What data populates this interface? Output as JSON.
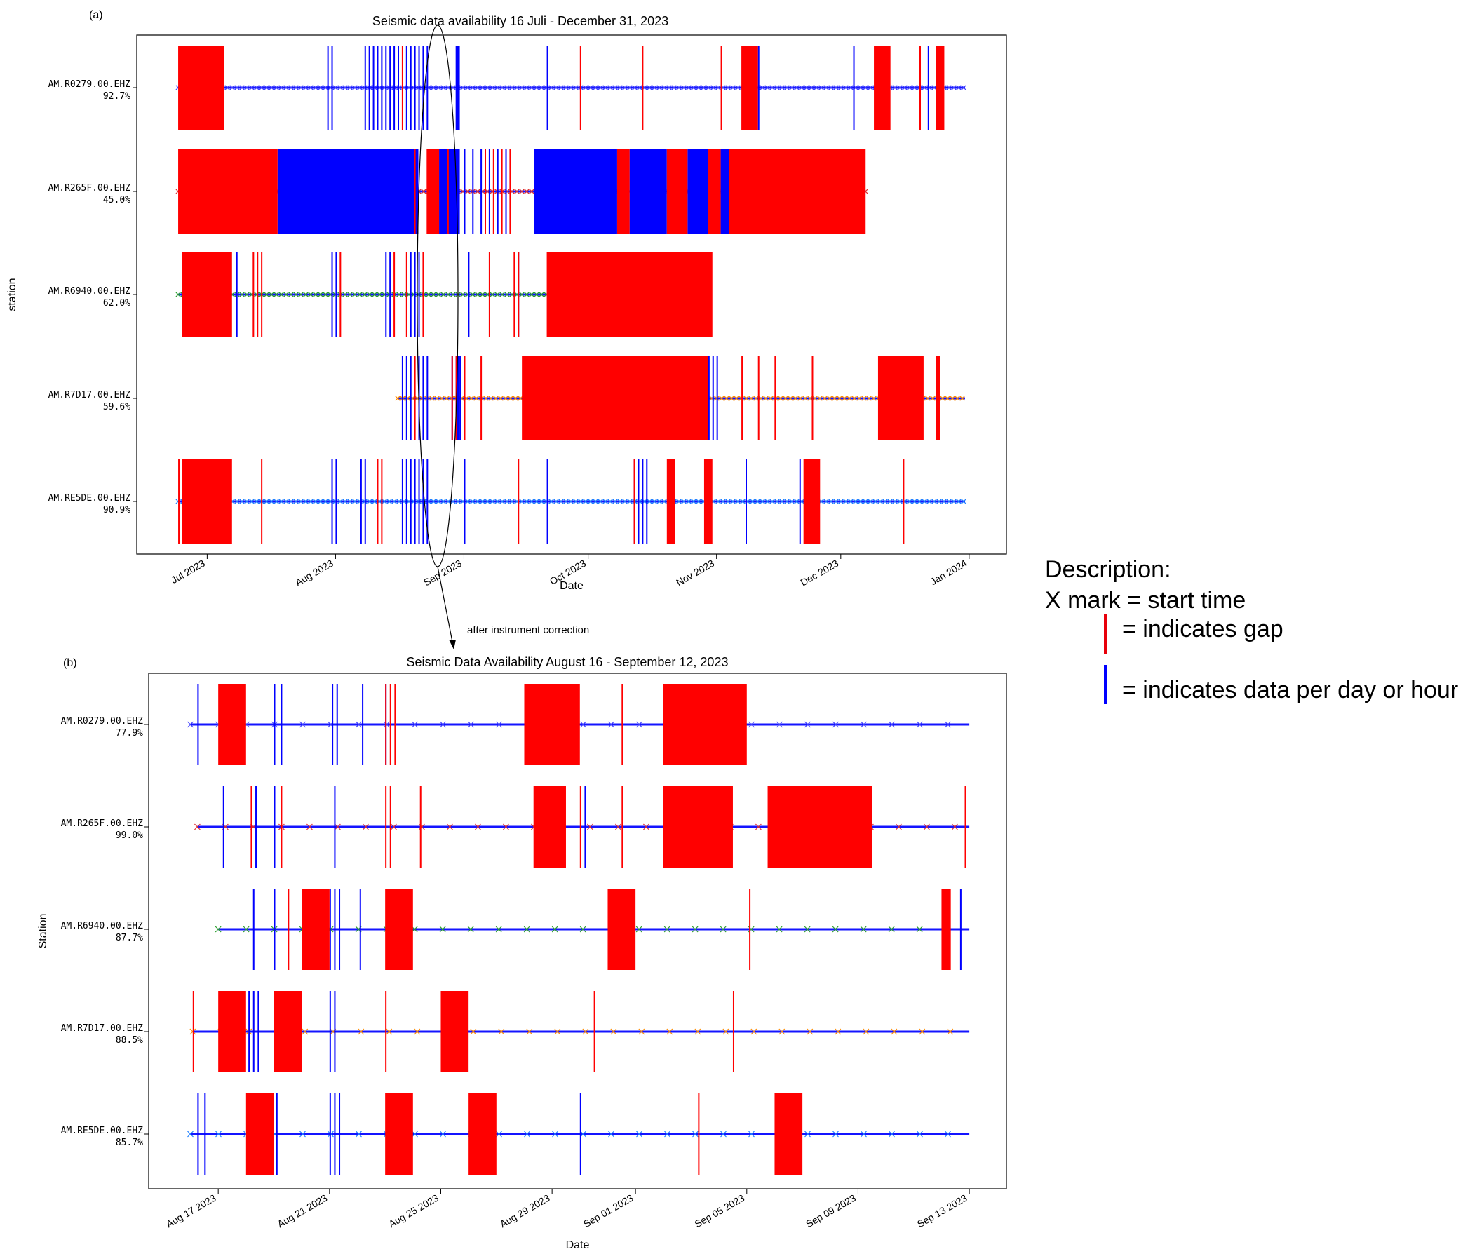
{
  "legend": {
    "title": "Description:",
    "x_mark": "X mark = start time",
    "gap": "= indicates gap",
    "data": "= indicates data per day or hour",
    "gap_color": "#ff0000",
    "data_color": "#0000ff"
  },
  "annotation": {
    "note": "after instrument correction"
  },
  "chart_data": [
    {
      "panel_label": "(a)",
      "type": "timeline",
      "title": "Seismic data availability 16 Juli - December  31, 2023",
      "xlabel": "Date",
      "ylabel": "station",
      "xlim": [
        "2023-06-14",
        "2024-01-10"
      ],
      "xticks": [
        {
          "date": "2023-07-01",
          "label": "Jul 2023"
        },
        {
          "date": "2023-08-01",
          "label": "Aug 2023"
        },
        {
          "date": "2023-09-01",
          "label": "Sep 2023"
        },
        {
          "date": "2023-10-01",
          "label": "Oct 2023"
        },
        {
          "date": "2023-11-01",
          "label": "Nov 2023"
        },
        {
          "date": "2023-12-01",
          "label": "Dec 2023"
        },
        {
          "date": "2024-01-01",
          "label": "Jan 2024"
        }
      ],
      "series": [
        {
          "station": "AM.R0279.00.EHZ",
          "pct": "92.7%",
          "marker_color": "#4040ff",
          "data_start": "2023-06-24",
          "data_end": "2023-12-31",
          "gaps": [
            [
              "2023-06-24",
              "2023-06-25"
            ],
            [
              "2023-06-25",
              "2023-07-04"
            ],
            [
              "2023-07-04",
              "2023-07-05"
            ],
            [
              "2023-11-07",
              "2023-11-11"
            ],
            [
              "2023-12-09",
              "2023-12-13"
            ],
            [
              "2023-12-24",
              "2023-12-26"
            ]
          ],
          "gap_lines": [
            "2023-06-26",
            "2023-08-17",
            "2023-09-29",
            "2023-10-14",
            "2023-11-02",
            "2023-11-08",
            "2023-11-10",
            "2023-12-20"
          ],
          "data_blocks": [
            [
              "2023-08-30",
              "2023-08-31"
            ]
          ],
          "data_lines": [
            "2023-07-30",
            "2023-07-31",
            "2023-08-08",
            "2023-08-09",
            "2023-08-10",
            "2023-08-11",
            "2023-08-12",
            "2023-08-13",
            "2023-08-14",
            "2023-08-15",
            "2023-08-16",
            "2023-08-18",
            "2023-08-19",
            "2023-08-20",
            "2023-08-21",
            "2023-08-22",
            "2023-08-23",
            "2023-09-21",
            "2023-11-11",
            "2023-12-04",
            "2023-12-22"
          ]
        },
        {
          "station": "AM.R265F.00.EHZ",
          "pct": "45.0%",
          "marker_color": "#e03030",
          "data_start": "2023-06-24",
          "data_end": "2023-12-07",
          "gaps": [
            [
              "2023-06-24",
              "2023-07-18"
            ],
            [
              "2023-08-23",
              "2023-08-26"
            ],
            [
              "2023-10-08",
              "2023-10-11"
            ],
            [
              "2023-10-20",
              "2023-10-25"
            ],
            [
              "2023-10-30",
              "2023-11-02"
            ],
            [
              "2023-11-04",
              "2023-12-07"
            ]
          ],
          "gap_lines": [
            "2023-07-06",
            "2023-08-20",
            "2023-08-28",
            "2023-09-06",
            "2023-09-08",
            "2023-09-10",
            "2023-09-12"
          ],
          "data_blocks": [
            [
              "2023-07-18",
              "2023-08-21"
            ],
            [
              "2023-08-26",
              "2023-08-31"
            ],
            [
              "2023-09-18",
              "2023-10-08"
            ],
            [
              "2023-10-11",
              "2023-10-20"
            ],
            [
              "2023-10-25",
              "2023-10-30"
            ],
            [
              "2023-11-02",
              "2023-11-04"
            ]
          ],
          "data_lines": [
            "2023-08-28",
            "2023-08-29",
            "2023-09-01",
            "2023-09-03",
            "2023-09-05",
            "2023-09-07",
            "2023-09-09",
            "2023-09-11"
          ]
        },
        {
          "station": "AM.R6940.00.EHZ",
          "pct": "62.0%",
          "marker_color": "#2ca02c",
          "data_start": "2023-06-24",
          "data_end": "2023-09-21",
          "gaps": [
            [
              "2023-06-25",
              "2023-07-07"
            ],
            [
              "2023-09-21",
              "2023-10-31"
            ]
          ],
          "gap_lines": [
            "2023-07-12",
            "2023-07-13",
            "2023-07-14",
            "2023-08-02",
            "2023-08-15",
            "2023-08-18",
            "2023-08-22",
            "2023-09-07",
            "2023-09-13",
            "2023-09-14"
          ],
          "data_blocks": [],
          "data_lines": [
            "2023-06-25",
            "2023-07-08",
            "2023-07-31",
            "2023-08-01",
            "2023-08-13",
            "2023-08-14",
            "2023-08-19",
            "2023-08-20",
            "2023-08-21",
            "2023-09-02",
            "2023-09-14"
          ]
        },
        {
          "station": "AM.R7D17.00.EHZ",
          "pct": "59.6%",
          "marker_color": "#ff8c00",
          "data_start": "2023-08-16",
          "data_end": "2023-12-31",
          "gaps": [
            [
              "2023-09-15",
              "2023-10-30"
            ],
            [
              "2023-12-10",
              "2023-12-21"
            ],
            [
              "2023-12-24",
              "2023-12-25"
            ]
          ],
          "gap_lines": [
            "2023-08-20",
            "2023-08-29",
            "2023-08-30",
            "2023-09-01",
            "2023-09-05",
            "2023-11-07",
            "2023-11-11",
            "2023-11-15",
            "2023-11-24"
          ],
          "data_blocks": [
            [
              "2023-08-30",
              "2023-08-31"
            ]
          ],
          "data_lines": [
            "2023-08-17",
            "2023-08-18",
            "2023-08-19",
            "2023-08-21",
            "2023-08-22",
            "2023-08-23",
            "2023-08-29",
            "2023-08-31",
            "2023-10-30",
            "2023-10-31",
            "2023-11-01"
          ]
        },
        {
          "station": "AM.RE5DE.00.EHZ",
          "pct": "90.9%",
          "marker_color": "#2080ff",
          "data_start": "2023-06-24",
          "data_end": "2023-12-31",
          "gaps": [
            [
              "2023-06-25",
              "2023-07-07"
            ],
            [
              "2023-10-20",
              "2023-10-22"
            ],
            [
              "2023-10-29",
              "2023-10-31"
            ],
            [
              "2023-11-22",
              "2023-11-26"
            ]
          ],
          "gap_lines": [
            "2023-06-24",
            "2023-07-14",
            "2023-08-11",
            "2023-08-12",
            "2023-09-14",
            "2023-10-12",
            "2023-12-16"
          ],
          "data_blocks": [],
          "data_lines": [
            "2023-07-31",
            "2023-08-01",
            "2023-08-07",
            "2023-08-08",
            "2023-08-17",
            "2023-08-18",
            "2023-08-19",
            "2023-08-20",
            "2023-08-21",
            "2023-08-22",
            "2023-08-23",
            "2023-09-01",
            "2023-09-21",
            "2023-10-12",
            "2023-10-13",
            "2023-10-14",
            "2023-10-15",
            "2023-11-08",
            "2023-11-21"
          ]
        }
      ]
    },
    {
      "panel_label": "(b)",
      "type": "timeline",
      "title": "Seismic Data Availability August 16 - September 12, 2023",
      "xlabel": "Date",
      "ylabel": "Station",
      "xlim": [
        "2023-08-14T12:00",
        "2023-09-14T08:00"
      ],
      "xticks": [
        {
          "date": "2023-08-17",
          "label": "Aug 17 2023"
        },
        {
          "date": "2023-08-21",
          "label": "Aug 21 2023"
        },
        {
          "date": "2023-08-25",
          "label": "Aug 25 2023"
        },
        {
          "date": "2023-08-29",
          "label": "Aug 29 2023"
        },
        {
          "date": "2023-09-01",
          "label": "Sep 01 2023"
        },
        {
          "date": "2023-09-05",
          "label": "Sep 05 2023"
        },
        {
          "date": "2023-09-09",
          "label": "Sep 09 2023"
        },
        {
          "date": "2023-09-13",
          "label": "Sep 13 2023"
        }
      ],
      "series": [
        {
          "station": "AM.R0279.00.EHZ",
          "pct": "77.9%",
          "marker_color": "#4040ff",
          "data_start": "2023-08-16T00:00",
          "data_end": "2023-09-13T00:00",
          "gaps": [
            [
              "2023-08-17T00:00",
              "2023-08-18T00:00"
            ],
            [
              "2023-08-28T00:00",
              "2023-08-30T00:00"
            ],
            [
              "2023-09-02T00:00",
              "2023-09-05T00:00"
            ]
          ],
          "gap_lines": [
            "2023-08-23T00:00",
            "2023-08-23T04:00",
            "2023-08-23T08:00",
            "2023-08-31T12:00"
          ],
          "data_blocks": [],
          "data_lines": [
            "2023-08-16T06:00",
            "2023-08-19T00:00",
            "2023-08-19T06:00",
            "2023-08-21T02:00",
            "2023-08-21T06:00",
            "2023-08-22T04:00",
            "2023-08-23T00:00"
          ]
        },
        {
          "station": "AM.R265F.00.EHZ",
          "pct": "99.0%",
          "marker_color": "#e03030",
          "data_start": "2023-08-16T06:00",
          "data_end": "2023-09-13T00:00",
          "gaps": [
            [
              "2023-08-28T08:00",
              "2023-08-29T12:00"
            ],
            [
              "2023-09-02T00:00",
              "2023-09-04T12:00"
            ],
            [
              "2023-09-05T18:00",
              "2023-09-09T12:00"
            ]
          ],
          "gap_lines": [
            "2023-08-18T04:00",
            "2023-08-19T06:00",
            "2023-08-23T00:00",
            "2023-08-23T04:00",
            "2023-08-24T06:00",
            "2023-08-30T00:00",
            "2023-08-31T12:00",
            "2023-09-12T20:00"
          ],
          "data_blocks": [],
          "data_lines": [
            "2023-08-17T04:00",
            "2023-08-18T08:00",
            "2023-08-19T00:00",
            "2023-08-21T04:00",
            "2023-08-28T20:00",
            "2023-08-29T00:00",
            "2023-08-30T04:00",
            "2023-09-03T02:00",
            "2023-09-03T12:00",
            "2023-09-08T12:00",
            "2023-09-08T20:00",
            "2023-09-09T04:00"
          ]
        },
        {
          "station": "AM.R6940.00.EHZ",
          "pct": "87.7%",
          "marker_color": "#2ca02c",
          "data_start": "2023-08-17T00:00",
          "data_end": "2023-09-13T00:00",
          "gaps": [
            [
              "2023-08-20T00:00",
              "2023-08-21T00:00"
            ],
            [
              "2023-08-23T00:00",
              "2023-08-24T00:00"
            ],
            [
              "2023-08-31T00:00",
              "2023-09-01T00:00"
            ],
            [
              "2023-09-12T00:00",
              "2023-09-12T08:00"
            ]
          ],
          "gap_lines": [
            "2023-08-19T12:00",
            "2023-09-05T02:00"
          ],
          "data_blocks": [],
          "data_lines": [
            "2023-08-18T06:00",
            "2023-08-19T00:00",
            "2023-08-21T00:00",
            "2023-08-21T04:00",
            "2023-08-21T08:00",
            "2023-08-22T02:00",
            "2023-09-12T16:00"
          ]
        },
        {
          "station": "AM.R7D17.00.EHZ",
          "pct": "88.5%",
          "marker_color": "#ff8c00",
          "data_start": "2023-08-16T02:00",
          "data_end": "2023-09-13T00:00",
          "gaps": [
            [
              "2023-08-17T00:00",
              "2023-08-18T00:00"
            ],
            [
              "2023-08-19T00:00",
              "2023-08-20T00:00"
            ],
            [
              "2023-08-25T00:00",
              "2023-08-26T00:00"
            ]
          ],
          "gap_lines": [
            "2023-08-16T02:00",
            "2023-08-23T00:00",
            "2023-08-30T12:00",
            "2023-09-04T12:00"
          ],
          "data_blocks": [],
          "data_lines": [
            "2023-08-18T02:00",
            "2023-08-18T06:00",
            "2023-08-18T10:00",
            "2023-08-21T00:00",
            "2023-08-21T04:00"
          ]
        },
        {
          "station": "AM.RE5DE.00.EHZ",
          "pct": "85.7%",
          "marker_color": "#2080ff",
          "data_start": "2023-08-16T00:00",
          "data_end": "2023-09-13T00:00",
          "gaps": [
            [
              "2023-08-18T00:00",
              "2023-08-19T00:00"
            ],
            [
              "2023-08-23T00:00",
              "2023-08-24T00:00"
            ],
            [
              "2023-08-26T00:00",
              "2023-08-27T00:00"
            ],
            [
              "2023-09-06T00:00",
              "2023-09-07T00:00"
            ]
          ],
          "gap_lines": [
            "2023-09-03T06:00"
          ],
          "data_blocks": [],
          "data_lines": [
            "2023-08-16T06:00",
            "2023-08-16T12:00",
            "2023-08-19T02:00",
            "2023-08-21T00:00",
            "2023-08-21T04:00",
            "2023-08-21T08:00",
            "2023-08-30T00:00"
          ]
        }
      ]
    }
  ]
}
